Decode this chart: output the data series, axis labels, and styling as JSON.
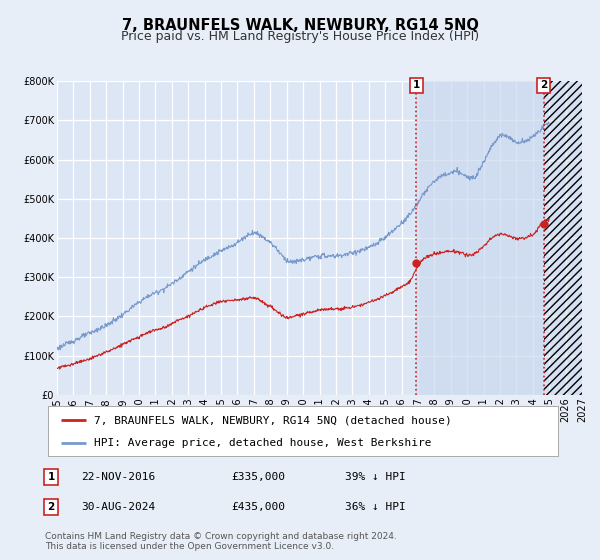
{
  "title": "7, BRAUNFELS WALK, NEWBURY, RG14 5NQ",
  "subtitle": "Price paid vs. HM Land Registry's House Price Index (HPI)",
  "ylim": [
    0,
    800000
  ],
  "yticks": [
    0,
    100000,
    200000,
    300000,
    400000,
    500000,
    600000,
    700000,
    800000
  ],
  "ytick_labels": [
    "£0",
    "£100K",
    "£200K",
    "£300K",
    "£400K",
    "£500K",
    "£600K",
    "£700K",
    "£800K"
  ],
  "xlim_start": 1995.0,
  "xlim_end": 2027.0,
  "xticks": [
    1995,
    1996,
    1997,
    1998,
    1999,
    2000,
    2001,
    2002,
    2003,
    2004,
    2005,
    2006,
    2007,
    2008,
    2009,
    2010,
    2011,
    2012,
    2013,
    2014,
    2015,
    2016,
    2017,
    2018,
    2019,
    2020,
    2021,
    2022,
    2023,
    2024,
    2025,
    2026,
    2027
  ],
  "background_color": "#e8eef7",
  "plot_bg_color": "#dce6f5",
  "grid_color": "#ffffff",
  "hpi_color": "#7799cc",
  "price_color": "#cc2222",
  "vline_color": "#cc2222",
  "shade_color": "#ccd9ee",
  "sale1_date": 2016.9,
  "sale1_price": 335000,
  "sale1_label": "1",
  "sale2_date": 2024.66,
  "sale2_price": 435000,
  "sale2_label": "2",
  "legend_line1": "7, BRAUNFELS WALK, NEWBURY, RG14 5NQ (detached house)",
  "legend_line2": "HPI: Average price, detached house, West Berkshire",
  "table_row1": [
    "1",
    "22-NOV-2016",
    "£335,000",
    "39% ↓ HPI"
  ],
  "table_row2": [
    "2",
    "30-AUG-2024",
    "£435,000",
    "36% ↓ HPI"
  ],
  "footnote1": "Contains HM Land Registry data © Crown copyright and database right 2024.",
  "footnote2": "This data is licensed under the Open Government Licence v3.0.",
  "title_fontsize": 10.5,
  "subtitle_fontsize": 9,
  "tick_fontsize": 7,
  "legend_fontsize": 8,
  "table_fontsize": 8,
  "footnote_fontsize": 6.5,
  "hpi_seed_x": [
    1995.0,
    1995.5,
    1996.0,
    1996.5,
    1997.0,
    1997.5,
    1998.0,
    1998.5,
    1999.0,
    1999.5,
    2000.0,
    2000.5,
    2001.0,
    2001.5,
    2002.0,
    2002.5,
    2003.0,
    2003.5,
    2004.0,
    2004.5,
    2005.0,
    2005.5,
    2006.0,
    2006.5,
    2007.0,
    2007.5,
    2008.0,
    2008.5,
    2009.0,
    2009.5,
    2010.0,
    2010.5,
    2011.0,
    2011.5,
    2012.0,
    2012.5,
    2013.0,
    2013.5,
    2014.0,
    2014.5,
    2015.0,
    2015.5,
    2016.0,
    2016.5,
    2017.0,
    2017.5,
    2018.0,
    2018.5,
    2019.0,
    2019.5,
    2020.0,
    2020.5,
    2021.0,
    2021.5,
    2022.0,
    2022.5,
    2023.0,
    2023.5,
    2024.0,
    2024.5,
    2025.0
  ],
  "hpi_seed_y": [
    118000,
    128000,
    138000,
    148000,
    158000,
    168000,
    178000,
    192000,
    206000,
    222000,
    238000,
    252000,
    262000,
    272000,
    285000,
    300000,
    316000,
    330000,
    345000,
    358000,
    368000,
    378000,
    390000,
    405000,
    415000,
    405000,
    390000,
    368000,
    345000,
    340000,
    345000,
    350000,
    355000,
    355000,
    355000,
    358000,
    362000,
    368000,
    375000,
    385000,
    400000,
    418000,
    438000,
    460000,
    490000,
    520000,
    545000,
    558000,
    565000,
    568000,
    555000,
    560000,
    595000,
    635000,
    660000,
    660000,
    645000,
    650000,
    660000,
    680000,
    695000
  ],
  "pp_seed_x": [
    1995.0,
    1995.5,
    1996.0,
    1996.5,
    1997.0,
    1997.5,
    1998.0,
    1998.5,
    1999.0,
    1999.5,
    2000.0,
    2000.5,
    2001.0,
    2001.5,
    2002.0,
    2002.5,
    2003.0,
    2003.5,
    2004.0,
    2004.5,
    2005.0,
    2005.5,
    2006.0,
    2006.5,
    2007.0,
    2007.5,
    2008.0,
    2008.5,
    2009.0,
    2009.5,
    2010.0,
    2010.5,
    2011.0,
    2011.5,
    2012.0,
    2012.5,
    2013.0,
    2013.5,
    2014.0,
    2014.5,
    2015.0,
    2015.5,
    2016.0,
    2016.5,
    2017.0,
    2017.5,
    2018.0,
    2018.5,
    2019.0,
    2019.5,
    2020.0,
    2020.5,
    2021.0,
    2021.5,
    2022.0,
    2022.5,
    2023.0,
    2023.5,
    2024.0,
    2024.5,
    2025.0
  ],
  "pp_seed_y": [
    68000,
    73000,
    78000,
    85000,
    92000,
    100000,
    108000,
    118000,
    128000,
    138000,
    148000,
    158000,
    165000,
    172000,
    182000,
    192000,
    202000,
    212000,
    222000,
    232000,
    238000,
    240000,
    242000,
    245000,
    248000,
    238000,
    225000,
    210000,
    198000,
    200000,
    205000,
    210000,
    215000,
    218000,
    218000,
    220000,
    222000,
    228000,
    235000,
    242000,
    252000,
    262000,
    275000,
    288000,
    328000,
    348000,
    358000,
    362000,
    365000,
    362000,
    355000,
    360000,
    378000,
    398000,
    408000,
    405000,
    398000,
    400000,
    408000,
    432000,
    445000
  ]
}
